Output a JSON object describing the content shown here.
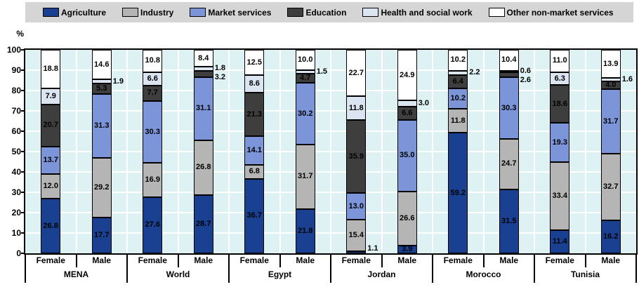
{
  "chart_data": {
    "type": "bar",
    "stacked": true,
    "unit_label": "%",
    "ylim": [
      0,
      100
    ],
    "ytick_interval": 10,
    "grid": true,
    "legend_position": "top",
    "plot_bg_color": "#def2f4",
    "gridline_color": "#ffffff",
    "series": [
      {
        "name": "Agriculture",
        "color": "#1a4191"
      },
      {
        "name": "Industry",
        "color": "#b5b5b5"
      },
      {
        "name": "Market services",
        "color": "#7b95d8"
      },
      {
        "name": "Education",
        "color": "#3e3e3e"
      },
      {
        "name": "Health and social work",
        "color": "#dbe5f2"
      },
      {
        "name": "Other non-market services",
        "color": "#ffffff"
      }
    ],
    "groups": [
      {
        "label": "MENA",
        "bars": [
          {
            "label": "Female",
            "values": [
              26.8,
              12.0,
              13.7,
              20.7,
              7.9,
              18.8
            ],
            "outside_label_series": []
          },
          {
            "label": "Male",
            "values": [
              17.7,
              29.2,
              31.3,
              5.3,
              1.9,
              14.6
            ],
            "outside_label_series": [
              4
            ]
          }
        ]
      },
      {
        "label": "World",
        "bars": [
          {
            "label": "Female",
            "values": [
              27.6,
              16.9,
              30.3,
              7.7,
              6.6,
              10.8
            ],
            "outside_label_series": []
          },
          {
            "label": "Male",
            "values": [
              28.7,
              26.8,
              31.1,
              3.2,
              1.8,
              8.4
            ],
            "outside_label_series": [
              3,
              4
            ]
          }
        ]
      },
      {
        "label": "Egypt",
        "bars": [
          {
            "label": "Female",
            "values": [
              36.7,
              6.8,
              14.1,
              21.3,
              8.6,
              12.5
            ],
            "outside_label_series": []
          },
          {
            "label": "Male",
            "values": [
              21.8,
              31.7,
              30.2,
              4.7,
              1.5,
              10.0
            ],
            "outside_label_series": [
              4
            ]
          }
        ]
      },
      {
        "label": "Jordan",
        "bars": [
          {
            "label": "Female",
            "values": [
              1.1,
              15.4,
              13.0,
              35.9,
              11.8,
              22.7
            ],
            "outside_label_series": [
              0
            ]
          },
          {
            "label": "Male",
            "values": [
              3.9,
              26.6,
              35.0,
              6.6,
              3.0,
              24.9
            ],
            "outside_label_series": [
              4
            ]
          }
        ]
      },
      {
        "label": "Morocco",
        "bars": [
          {
            "label": "Female",
            "values": [
              59.2,
              11.8,
              10.2,
              6.4,
              2.2,
              10.2
            ],
            "outside_label_series": [
              4
            ]
          },
          {
            "label": "Male",
            "values": [
              31.5,
              24.7,
              30.3,
              2.6,
              0.6,
              10.4
            ],
            "outside_label_series": [
              3,
              4
            ]
          }
        ]
      },
      {
        "label": "Tunisia",
        "bars": [
          {
            "label": "Female",
            "values": [
              11.4,
              33.4,
              19.3,
              18.6,
              6.3,
              11.0
            ],
            "outside_label_series": []
          },
          {
            "label": "Male",
            "values": [
              16.2,
              32.7,
              31.7,
              4.0,
              1.6,
              13.9
            ],
            "outside_label_series": [
              4
            ]
          }
        ]
      }
    ]
  }
}
